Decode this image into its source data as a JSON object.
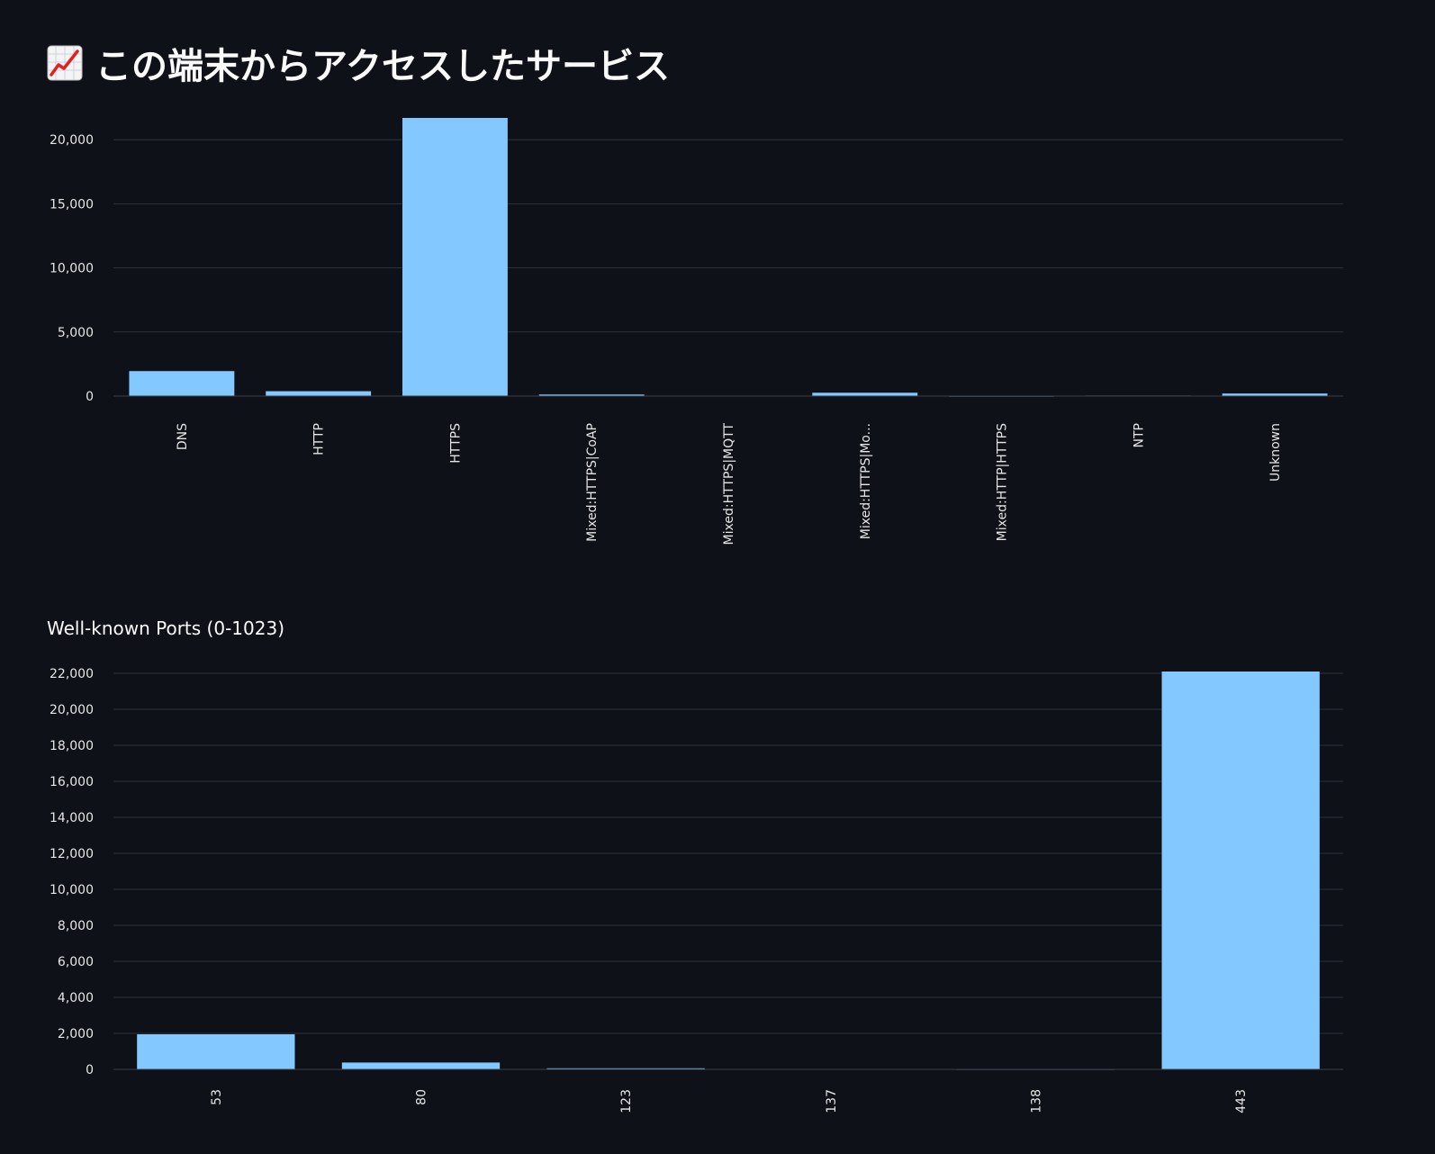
{
  "page": {
    "title": "この端末からアクセスしたサービス",
    "title_icon": "chart-increasing-icon"
  },
  "colors": {
    "background": "#0e1117",
    "bar": "#83c9ff",
    "grid": "#31333f",
    "text": "#fafafa"
  },
  "chart_data": [
    {
      "type": "bar",
      "title": "",
      "xlabel": "",
      "ylabel": "",
      "categories": [
        "DNS",
        "HTTP",
        "HTTPS",
        "Mixed:HTTPS|CoAP",
        "Mixed:HTTPS|MQTT",
        "Mixed:HTTPS|Mo...",
        "Mixed:HTTP|HTTPS",
        "NTP",
        "Unknown"
      ],
      "values": [
        1950,
        380,
        21700,
        120,
        25,
        260,
        10,
        40,
        200
      ],
      "yticks": [
        0,
        5000,
        10000,
        15000,
        20000
      ],
      "ytick_labels": [
        "0",
        "5,000",
        "10,000",
        "15,000",
        "20,000"
      ],
      "ylim": [
        0,
        21700
      ],
      "grid": true,
      "legend": "none"
    },
    {
      "type": "bar",
      "title": "Well-known Ports (0-1023)",
      "xlabel": "",
      "ylabel": "",
      "categories": [
        "53",
        "80",
        "123",
        "137",
        "138",
        "443"
      ],
      "values": [
        1950,
        380,
        60,
        20,
        10,
        22100
      ],
      "yticks": [
        0,
        2000,
        4000,
        6000,
        8000,
        10000,
        12000,
        14000,
        16000,
        18000,
        20000,
        22000
      ],
      "ytick_labels": [
        "0",
        "2,000",
        "4,000",
        "6,000",
        "8,000",
        "10,000",
        "12,000",
        "14,000",
        "16,000",
        "18,000",
        "20,000",
        "22,000"
      ],
      "ylim": [
        0,
        22100
      ],
      "grid": true,
      "legend": "none"
    }
  ]
}
